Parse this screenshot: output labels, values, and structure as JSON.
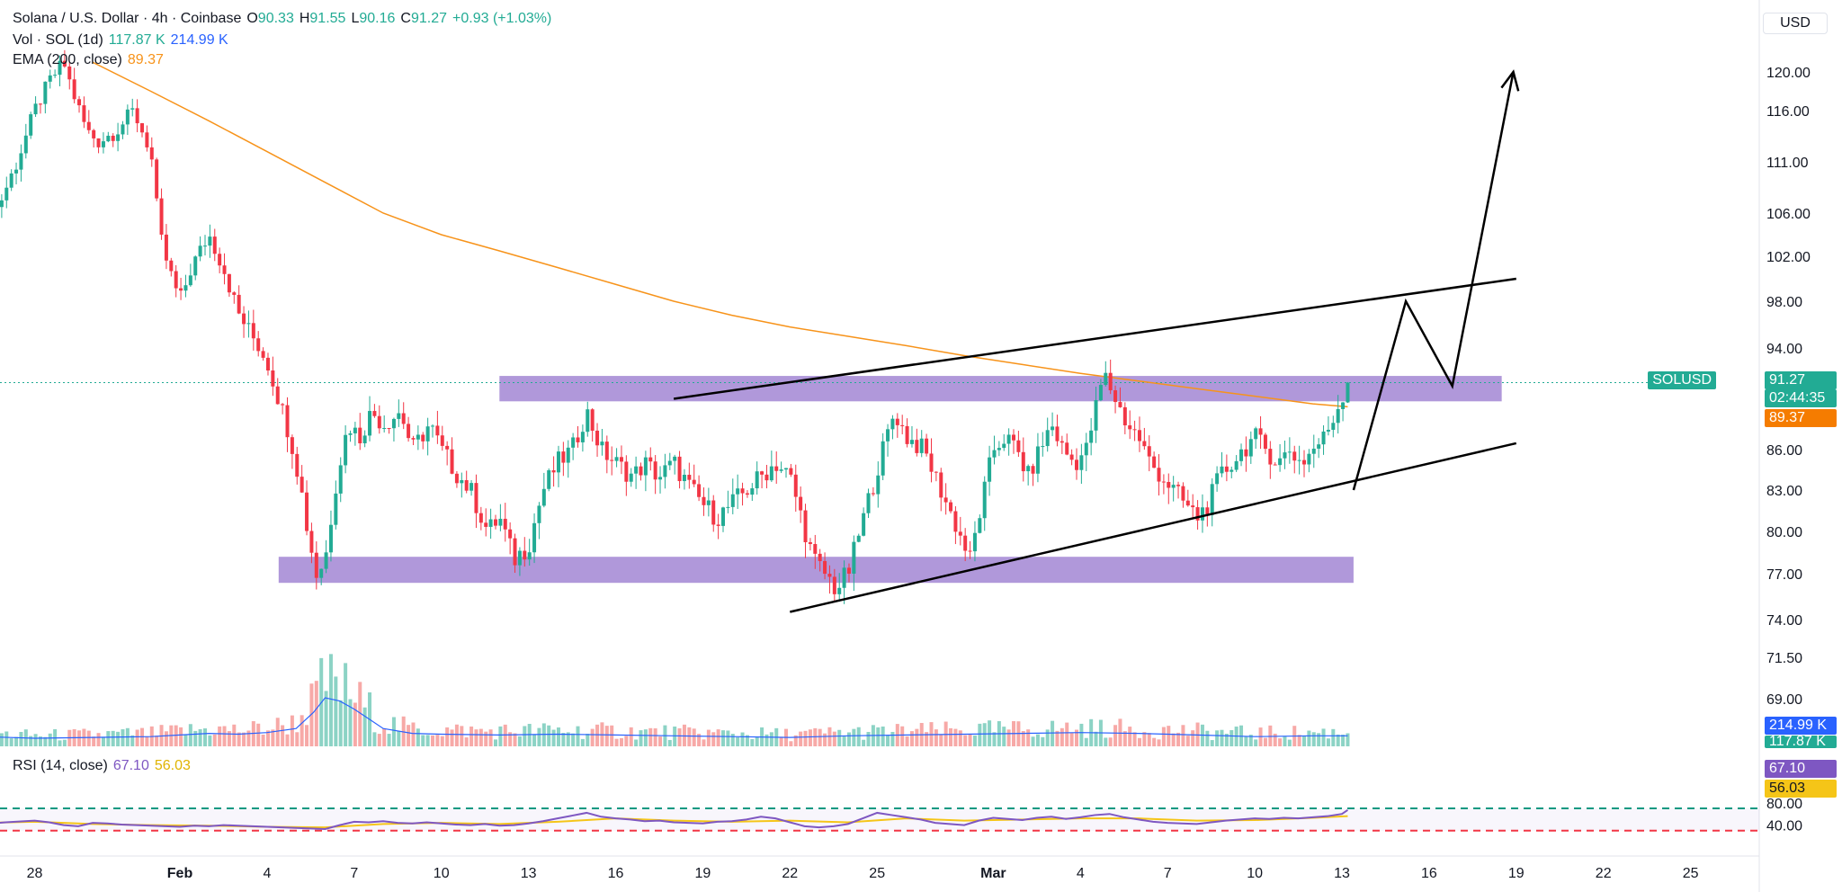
{
  "header": {
    "symbol_line": "Solana / U.S. Dollar · 4h · Coinbase",
    "open_label": "O",
    "open": "90.33",
    "high_label": "H",
    "high": "91.55",
    "low_label": "L",
    "low": "90.16",
    "close_label": "C",
    "close": "91.27",
    "change": "+0.93 (+1.03%)"
  },
  "volume_legend": {
    "label": "Vol · SOL (1d)",
    "v1": "117.87 K",
    "v2": "214.99 K"
  },
  "ema_legend": {
    "label": "EMA (200, close)",
    "value": "89.37"
  },
  "rsi_legend": {
    "label": "RSI (14, close)",
    "value": "67.10",
    "ma": "56.03"
  },
  "currency": "USD",
  "colors": {
    "up": "#22ab94",
    "down": "#f23645",
    "vol_up": "#8cd3c5",
    "vol_down": "#f7a9a7",
    "ema": "#f7931a",
    "zone": "#9575cd",
    "rsi": "#7e57c2",
    "rsi_ma": "#f5c518",
    "vol_ma": "#2962ff"
  },
  "tags": {
    "symbol": "SOLUSD",
    "price": "91.27",
    "countdown": "02:44:35",
    "ema": "89.37",
    "vol_ma": "214.99 K",
    "vol": "117.87 K",
    "rsi": "67.10",
    "rsi_ma": "56.03"
  },
  "chart_data": {
    "type": "candlestick",
    "y_ticks": [
      120.0,
      116.0,
      111.0,
      106.0,
      102.0,
      98.0,
      94.0,
      86.0,
      83.0,
      80.0,
      77.0,
      74.0,
      71.5,
      69.0
    ],
    "y_tick_labels": [
      "120.00",
      "116.00",
      "111.00",
      "106.00",
      "102.00",
      "98.00",
      "94.00",
      "86.00",
      "83.00",
      "80.00",
      "77.00",
      "74.00",
      "71.50",
      "69.00"
    ],
    "rsi_ticks": [
      80,
      40
    ],
    "rsi_tick_labels": [
      "80.00",
      "40.00"
    ],
    "x_ticks": [
      {
        "label": "28",
        "day": -4
      },
      {
        "label": "Feb",
        "day": 1
      },
      {
        "label": "4",
        "day": 4
      },
      {
        "label": "7",
        "day": 7
      },
      {
        "label": "10",
        "day": 10
      },
      {
        "label": "13",
        "day": 13
      },
      {
        "label": "16",
        "day": 16
      },
      {
        "label": "19",
        "day": 19
      },
      {
        "label": "22",
        "day": 22
      },
      {
        "label": "25",
        "day": 25
      },
      {
        "label": "Mar",
        "day": 29
      },
      {
        "label": "4",
        "day": 32
      },
      {
        "label": "7",
        "day": 35
      },
      {
        "label": "10",
        "day": 38
      },
      {
        "label": "13",
        "day": 41
      },
      {
        "label": "16",
        "day": 44
      },
      {
        "label": "19",
        "day": 47
      },
      {
        "label": "22",
        "day": 50
      },
      {
        "label": "25",
        "day": 53
      }
    ],
    "close_path": [
      [
        -5.8,
        104
      ],
      [
        -5.2,
        107
      ],
      [
        -4.6,
        111
      ],
      [
        -4,
        116
      ],
      [
        -3.5,
        119
      ],
      [
        -3,
        121
      ],
      [
        -2.7,
        118
      ],
      [
        -2.2,
        114
      ],
      [
        -1.8,
        113
      ],
      [
        -1.2,
        114
      ],
      [
        -0.6,
        116
      ],
      [
        0,
        112
      ],
      [
        0.3,
        104
      ],
      [
        0.6,
        101
      ],
      [
        1,
        98
      ],
      [
        1.4,
        101
      ],
      [
        2,
        104
      ],
      [
        2.5,
        101
      ],
      [
        3,
        97
      ],
      [
        3.5,
        95
      ],
      [
        4,
        93
      ],
      [
        4.4,
        90
      ],
      [
        4.8,
        87
      ],
      [
        5.1,
        84
      ],
      [
        5.4,
        80
      ],
      [
        5.7,
        77
      ],
      [
        6,
        78
      ],
      [
        6.4,
        84
      ],
      [
        6.8,
        88
      ],
      [
        7.2,
        87
      ],
      [
        7.6,
        89
      ],
      [
        8,
        88
      ],
      [
        8.6,
        89
      ],
      [
        9,
        86
      ],
      [
        9.6,
        88
      ],
      [
        10,
        86
      ],
      [
        10.6,
        84
      ],
      [
        11,
        83
      ],
      [
        11.6,
        80
      ],
      [
        12,
        81
      ],
      [
        12.5,
        78
      ],
      [
        13,
        79
      ],
      [
        13.5,
        83
      ],
      [
        14,
        85
      ],
      [
        14.5,
        86
      ],
      [
        15,
        89
      ],
      [
        15.5,
        86
      ],
      [
        16,
        85
      ],
      [
        16.6,
        84
      ],
      [
        17,
        85
      ],
      [
        17.5,
        84
      ],
      [
        18,
        85
      ],
      [
        18.6,
        83
      ],
      [
        19,
        82
      ],
      [
        19.5,
        81
      ],
      [
        20,
        82
      ],
      [
        20.5,
        83
      ],
      [
        21,
        84
      ],
      [
        21.5,
        85
      ],
      [
        22,
        84
      ],
      [
        22.4,
        81
      ],
      [
        22.8,
        78
      ],
      [
        23.2,
        77
      ],
      [
        23.6,
        76
      ],
      [
        24,
        77
      ],
      [
        24.4,
        80
      ],
      [
        24.8,
        83
      ],
      [
        25.2,
        86
      ],
      [
        25.6,
        89
      ],
      [
        26,
        87
      ],
      [
        26.6,
        86
      ],
      [
        27,
        84
      ],
      [
        27.4,
        82
      ],
      [
        27.8,
        80
      ],
      [
        28.2,
        78
      ],
      [
        28.6,
        82
      ],
      [
        29,
        86
      ],
      [
        29.4,
        87
      ],
      [
        29.8,
        86
      ],
      [
        30.2,
        84
      ],
      [
        30.6,
        86
      ],
      [
        31,
        88
      ],
      [
        31.4,
        86
      ],
      [
        31.8,
        85
      ],
      [
        32.2,
        86
      ],
      [
        32.5,
        89
      ],
      [
        32.8,
        92
      ],
      [
        33.2,
        90
      ],
      [
        33.6,
        88
      ],
      [
        34,
        87
      ],
      [
        34.4,
        85
      ],
      [
        34.8,
        84
      ],
      [
        35.2,
        83
      ],
      [
        35.6,
        82
      ],
      [
        36,
        81
      ],
      [
        36.4,
        82
      ],
      [
        36.8,
        84
      ],
      [
        37.2,
        85
      ],
      [
        37.6,
        86
      ],
      [
        38,
        87
      ],
      [
        38.4,
        86
      ],
      [
        38.8,
        85
      ],
      [
        39.2,
        86
      ],
      [
        39.6,
        85
      ],
      [
        40,
        86
      ],
      [
        40.4,
        87
      ],
      [
        40.8,
        89
      ],
      [
        41.2,
        91.27
      ]
    ],
    "ema_path": [
      [
        -2,
        121
      ],
      [
        0,
        118
      ],
      [
        2,
        115
      ],
      [
        4,
        112
      ],
      [
        6,
        109
      ],
      [
        8,
        106
      ],
      [
        10,
        104
      ],
      [
        12,
        102.5
      ],
      [
        14,
        101
      ],
      [
        16,
        99.5
      ],
      [
        18,
        98
      ],
      [
        20,
        96.8
      ],
      [
        22,
        95.8
      ],
      [
        24,
        95
      ],
      [
        26,
        94.2
      ],
      [
        28,
        93.4
      ],
      [
        30,
        92.7
      ],
      [
        32,
        92
      ],
      [
        34,
        91.4
      ],
      [
        36,
        90.8
      ],
      [
        38,
        90.2
      ],
      [
        40,
        89.6
      ],
      [
        41.2,
        89.37
      ]
    ],
    "zones": [
      {
        "from_day": 12,
        "to_day": 46.5,
        "low": 89.8,
        "high": 91.8
      },
      {
        "from_day": 4.4,
        "to_day": 41.4,
        "low": 76.4,
        "high": 78.2
      }
    ],
    "trendlines": [
      {
        "points": [
          [
            18,
            90
          ],
          [
            47,
            100
          ]
        ]
      },
      {
        "points": [
          [
            22,
            74.5
          ],
          [
            47,
            86.5
          ]
        ]
      }
    ],
    "projection": [
      [
        41.4,
        83
      ],
      [
        43.2,
        98
      ],
      [
        44.8,
        91
      ],
      [
        46.9,
        120
      ]
    ],
    "current_price": 91.27,
    "rsi_path": [
      [
        -5.8,
        42
      ],
      [
        -5,
        45
      ],
      [
        -4,
        48
      ],
      [
        -3.5,
        45
      ],
      [
        -3,
        40
      ],
      [
        -2.5,
        38
      ],
      [
        -2,
        44
      ],
      [
        -1.5,
        43
      ],
      [
        -1,
        41
      ],
      [
        -0.5,
        40
      ],
      [
        0,
        39
      ],
      [
        0.5,
        38
      ],
      [
        1,
        37
      ],
      [
        1.5,
        39
      ],
      [
        2,
        38
      ],
      [
        2.5,
        40
      ],
      [
        3,
        39
      ],
      [
        3.5,
        38
      ],
      [
        4,
        37
      ],
      [
        4.5,
        36
      ],
      [
        5,
        35
      ],
      [
        5.5,
        34
      ],
      [
        6,
        33
      ],
      [
        6.5,
        40
      ],
      [
        7,
        46
      ],
      [
        7.5,
        45
      ],
      [
        8,
        47
      ],
      [
        8.5,
        44
      ],
      [
        9,
        43
      ],
      [
        9.5,
        45
      ],
      [
        10,
        43
      ],
      [
        10.5,
        41
      ],
      [
        11,
        40
      ],
      [
        11.5,
        42
      ],
      [
        12,
        39
      ],
      [
        12.5,
        40
      ],
      [
        13,
        43
      ],
      [
        13.5,
        47
      ],
      [
        14,
        52
      ],
      [
        14.5,
        57
      ],
      [
        15,
        62
      ],
      [
        15.5,
        55
      ],
      [
        16,
        52
      ],
      [
        16.5,
        50
      ],
      [
        17,
        47
      ],
      [
        17.5,
        48
      ],
      [
        18,
        45
      ],
      [
        18.5,
        44
      ],
      [
        19,
        43
      ],
      [
        19.5,
        46
      ],
      [
        20,
        47
      ],
      [
        20.5,
        50
      ],
      [
        21,
        55
      ],
      [
        21.5,
        52
      ],
      [
        22,
        45
      ],
      [
        22.5,
        38
      ],
      [
        23,
        36
      ],
      [
        23.5,
        38
      ],
      [
        24,
        42
      ],
      [
        24.5,
        52
      ],
      [
        25,
        62
      ],
      [
        25.5,
        58
      ],
      [
        26,
        54
      ],
      [
        26.5,
        50
      ],
      [
        27,
        44
      ],
      [
        27.5,
        42
      ],
      [
        28,
        40
      ],
      [
        28.5,
        48
      ],
      [
        29,
        53
      ],
      [
        29.5,
        51
      ],
      [
        30,
        49
      ],
      [
        30.5,
        53
      ],
      [
        31,
        55
      ],
      [
        31.5,
        51
      ],
      [
        32,
        54
      ],
      [
        32.5,
        58
      ],
      [
        33,
        60
      ],
      [
        33.5,
        54
      ],
      [
        34,
        50
      ],
      [
        34.5,
        46
      ],
      [
        35,
        44
      ],
      [
        35.5,
        43
      ],
      [
        36,
        42
      ],
      [
        36.5,
        45
      ],
      [
        37,
        48
      ],
      [
        37.5,
        50
      ],
      [
        38,
        52
      ],
      [
        38.5,
        51
      ],
      [
        39,
        53
      ],
      [
        39.5,
        52
      ],
      [
        40,
        54
      ],
      [
        40.5,
        56
      ],
      [
        41,
        60
      ],
      [
        41.2,
        67.1
      ]
    ],
    "rsi_ma_path": [
      [
        -5.8,
        44
      ],
      [
        -4,
        46
      ],
      [
        -2,
        42
      ],
      [
        0,
        40
      ],
      [
        2,
        39
      ],
      [
        4,
        37
      ],
      [
        6,
        36
      ],
      [
        8,
        42
      ],
      [
        10,
        44
      ],
      [
        12,
        42
      ],
      [
        14,
        46
      ],
      [
        16,
        52
      ],
      [
        18,
        48
      ],
      [
        20,
        46
      ],
      [
        22,
        48
      ],
      [
        24,
        45
      ],
      [
        26,
        52
      ],
      [
        28,
        48
      ],
      [
        30,
        50
      ],
      [
        32,
        52
      ],
      [
        34,
        52
      ],
      [
        36,
        48
      ],
      [
        38,
        49
      ],
      [
        40,
        53
      ],
      [
        41.2,
        56.03
      ]
    ],
    "vol_ma_path": [
      [
        -5.8,
        12
      ],
      [
        -4,
        10
      ],
      [
        -2,
        11
      ],
      [
        0,
        12
      ],
      [
        1,
        14
      ],
      [
        2,
        16
      ],
      [
        3,
        15
      ],
      [
        4,
        17
      ],
      [
        5,
        22
      ],
      [
        5.6,
        42
      ],
      [
        6,
        60
      ],
      [
        6.5,
        56
      ],
      [
        7,
        46
      ],
      [
        7.5,
        34
      ],
      [
        8,
        22
      ],
      [
        9,
        16
      ],
      [
        10,
        15
      ],
      [
        12,
        14
      ],
      [
        14,
        15
      ],
      [
        16,
        14
      ],
      [
        18,
        13
      ],
      [
        20,
        12
      ],
      [
        22,
        11
      ],
      [
        24,
        13
      ],
      [
        26,
        14
      ],
      [
        28,
        15
      ],
      [
        30,
        16
      ],
      [
        32,
        17
      ],
      [
        34,
        16
      ],
      [
        36,
        14
      ],
      [
        38,
        12
      ],
      [
        40,
        13
      ],
      [
        41.2,
        13
      ]
    ]
  }
}
